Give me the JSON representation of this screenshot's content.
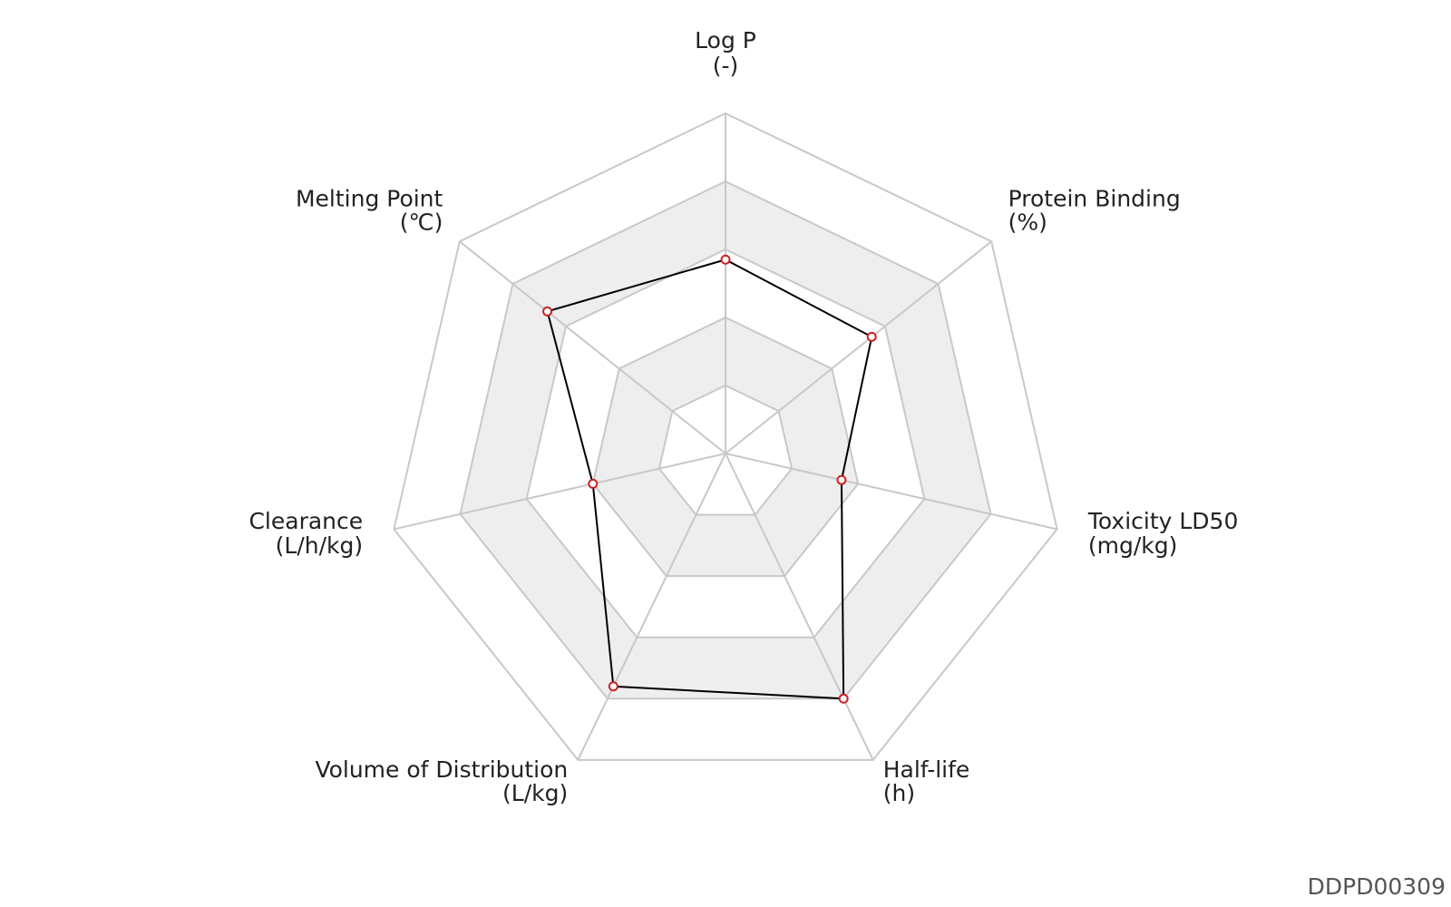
{
  "chart_data": {
    "type": "radar",
    "title": "",
    "axes": [
      {
        "name": "Log P",
        "unit": "(-)"
      },
      {
        "name": "Protein Binding",
        "unit": "(%)"
      },
      {
        "name": "Toxicity LD50",
        "unit": "(mg/kg)"
      },
      {
        "name": "Half-life",
        "unit": "(h)"
      },
      {
        "name": "Volume of Distribution",
        "unit": "(L/kg)"
      },
      {
        "name": "Clearance",
        "unit": "(L/h/kg)"
      },
      {
        "name": "Melting Point",
        "unit": "(℃)"
      }
    ],
    "series": [
      {
        "values": [
          0.57,
          0.55,
          0.35,
          0.8,
          0.76,
          0.4,
          0.67
        ],
        "line_color": "#000000",
        "marker_color": "#cc2222"
      }
    ],
    "range": [
      0,
      1
    ],
    "rings": 5,
    "grid": true,
    "band_colors": [
      "#ffffff",
      "#eeeeee"
    ],
    "grid_color": "#c8c8c8"
  },
  "watermark": "DDPD00309"
}
